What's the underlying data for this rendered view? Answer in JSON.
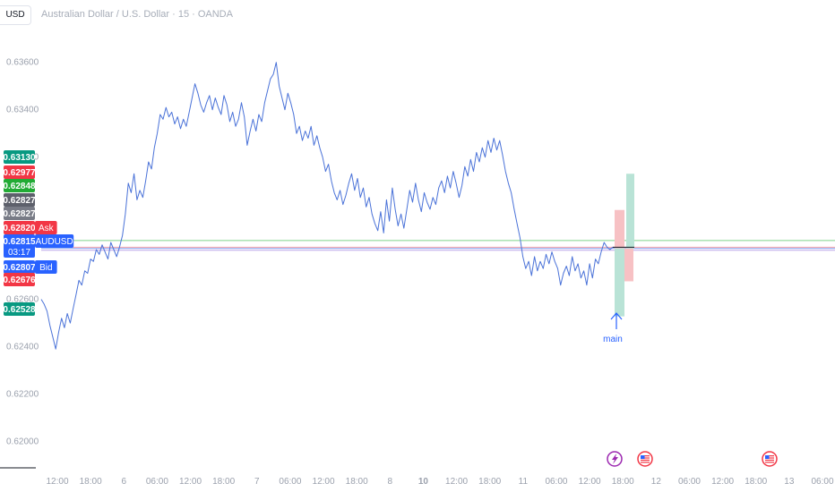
{
  "header": {
    "currency_button": "USD",
    "symbol_title": "Australian Dollar / U.S. Dollar · 15 · OANDA"
  },
  "chart_data": {
    "type": "line",
    "ylim": [
      0.619,
      0.6375
    ],
    "y_ticks": [
      "0.63600",
      "0.63400",
      "0.63200",
      "0.62600",
      "0.62400",
      "0.62200",
      "0.62000"
    ],
    "x_ticks": [
      {
        "label": "12:00",
        "bold": false
      },
      {
        "label": "18:00",
        "bold": false
      },
      {
        "label": "6",
        "bold": false
      },
      {
        "label": "06:00",
        "bold": false
      },
      {
        "label": "12:00",
        "bold": false
      },
      {
        "label": "18:00",
        "bold": false
      },
      {
        "label": "7",
        "bold": false
      },
      {
        "label": "06:00",
        "bold": false
      },
      {
        "label": "12:00",
        "bold": false
      },
      {
        "label": "18:00",
        "bold": false
      },
      {
        "label": "8",
        "bold": false
      },
      {
        "label": "10",
        "bold": true
      },
      {
        "label": "12:00",
        "bold": false
      },
      {
        "label": "18:00",
        "bold": false
      },
      {
        "label": "11",
        "bold": false
      },
      {
        "label": "06:00",
        "bold": false
      },
      {
        "label": "12:00",
        "bold": false
      },
      {
        "label": "18:00",
        "bold": false
      },
      {
        "label": "12",
        "bold": false
      },
      {
        "label": "06:00",
        "bold": false
      },
      {
        "label": "12:00",
        "bold": false
      },
      {
        "label": "18:00",
        "bold": false
      },
      {
        "label": "13",
        "bold": false
      },
      {
        "label": "06:00",
        "bold": false
      }
    ],
    "series": [
      {
        "color": "#4a72d8",
        "values": [
          0.626,
          0.6258,
          0.6255,
          0.6249,
          0.6244,
          0.6239,
          0.6246,
          0.6252,
          0.6248,
          0.6254,
          0.625,
          0.6256,
          0.6262,
          0.6268,
          0.6266,
          0.6272,
          0.6271,
          0.6277,
          0.6276,
          0.6281,
          0.6279,
          0.6283,
          0.628,
          0.6277,
          0.6284,
          0.6281,
          0.6278,
          0.6282,
          0.6287,
          0.6296,
          0.6309,
          0.6305,
          0.6313,
          0.6302,
          0.6306,
          0.6303,
          0.631,
          0.6318,
          0.6315,
          0.6324,
          0.633,
          0.6338,
          0.6336,
          0.6341,
          0.6337,
          0.6339,
          0.6334,
          0.6337,
          0.6332,
          0.6336,
          0.6333,
          0.6339,
          0.6345,
          0.6351,
          0.6347,
          0.6342,
          0.6339,
          0.6343,
          0.6346,
          0.634,
          0.6345,
          0.6341,
          0.6338,
          0.6346,
          0.6342,
          0.6335,
          0.6339,
          0.6333,
          0.6336,
          0.6343,
          0.6337,
          0.6325,
          0.6331,
          0.6336,
          0.6331,
          0.6338,
          0.6335,
          0.6343,
          0.6348,
          0.6353,
          0.6355,
          0.636,
          0.635,
          0.6345,
          0.634,
          0.6347,
          0.6343,
          0.6338,
          0.633,
          0.6333,
          0.6327,
          0.6331,
          0.6328,
          0.6333,
          0.6325,
          0.6329,
          0.6324,
          0.632,
          0.6314,
          0.6317,
          0.631,
          0.6305,
          0.6302,
          0.6306,
          0.63,
          0.6304,
          0.6309,
          0.6313,
          0.6306,
          0.6311,
          0.6303,
          0.6307,
          0.6299,
          0.6303,
          0.6296,
          0.6292,
          0.6289,
          0.6297,
          0.6288,
          0.6302,
          0.6293,
          0.6307,
          0.6298,
          0.6291,
          0.6296,
          0.629,
          0.6298,
          0.6306,
          0.6301,
          0.6309,
          0.6302,
          0.6297,
          0.6305,
          0.6301,
          0.6298,
          0.6303,
          0.63,
          0.6307,
          0.631,
          0.6305,
          0.6312,
          0.6307,
          0.6314,
          0.6309,
          0.6303,
          0.6308,
          0.6316,
          0.6312,
          0.6319,
          0.6314,
          0.6322,
          0.6318,
          0.6324,
          0.632,
          0.6327,
          0.6322,
          0.6328,
          0.6323,
          0.6327,
          0.6321,
          0.6314,
          0.6309,
          0.6305,
          0.6298,
          0.6292,
          0.6286,
          0.6278,
          0.6273,
          0.6276,
          0.627,
          0.6278,
          0.6272,
          0.6276,
          0.6273,
          0.6279,
          0.6275,
          0.628,
          0.6276,
          0.6273,
          0.6266,
          0.6271,
          0.6274,
          0.627,
          0.6278,
          0.6272,
          0.6275,
          0.6269,
          0.6272,
          0.6266,
          0.6275,
          0.6269,
          0.6277,
          0.6275,
          0.628,
          0.6284,
          0.6282,
          0.6281,
          0.6282
        ]
      }
    ],
    "price_tags": [
      {
        "value": "0.63130",
        "color": "#089981",
        "value_num": 0.6313
      },
      {
        "value": "0.62977",
        "color": "#f23645",
        "value_num": 0.62977
      },
      {
        "value": "0.62848",
        "color": "#22ab35",
        "value_num": 0.62848
      },
      {
        "value": "0.62827",
        "color": "#5d606b",
        "value_num": 0.62827
      },
      {
        "value": "0.62827",
        "color": "#787b86",
        "value_num": 0.62827
      },
      {
        "value": "0.62820",
        "color": "#f23645",
        "value_num": 0.6282,
        "label": "Ask"
      },
      {
        "value": "0.62815",
        "color": "#2962ff",
        "value_num": 0.62815,
        "label": "AUDUSD",
        "sub": "03:17"
      },
      {
        "value": "0.62807",
        "color": "#2962ff",
        "value_num": 0.62807,
        "label": "Bid"
      },
      {
        "value": "0.62676",
        "color": "#f23645",
        "value_num": 0.62676
      },
      {
        "value": "0.62528",
        "color": "#089981",
        "value_num": 0.62528
      }
    ],
    "horizontal_lines": [
      {
        "value": 0.62848,
        "color": "#7fd38a"
      },
      {
        "value": 0.6282,
        "color": "#f7a5ac"
      },
      {
        "value": 0.62815,
        "color": "#8aa5f0"
      },
      {
        "value": 0.62807,
        "color": "#b9a5e8"
      }
    ],
    "positions": [
      {
        "type": "short",
        "color": "#f7c1c4",
        "top": 0.62977,
        "bottom": 0.62676
      },
      {
        "type": "long",
        "color": "#b9e3d6",
        "top": 0.6313,
        "bottom": 0.62528
      }
    ],
    "annotation": {
      "text": "main",
      "value": 0.62528
    }
  }
}
